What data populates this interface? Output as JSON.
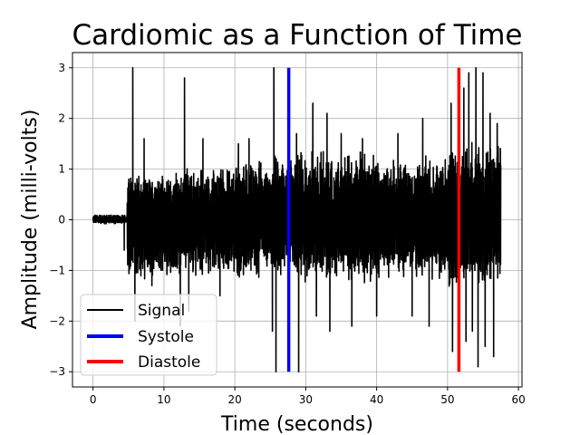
{
  "chart_data": {
    "type": "line",
    "title": "Cardiomic as a Function of Time",
    "xlabel": "Time (seconds)",
    "ylabel": "Amplitude (milli-volts)",
    "xlim": [
      -2.9,
      60.5
    ],
    "ylim": [
      -3.3,
      3.3
    ],
    "xticks": [
      0,
      10,
      20,
      30,
      40,
      50,
      60
    ],
    "yticks": [
      -3,
      -2,
      -1,
      0,
      1,
      2,
      3
    ],
    "grid": true,
    "legend_position": "lower-left",
    "colors": {
      "signal": "#000000",
      "systole": "#0000ff",
      "diastole": "#ff0000"
    },
    "series": [
      {
        "name": "Signal",
        "style": "line",
        "x_range": [
          0,
          57.5
        ],
        "envelope_segments": [
          {
            "x": [
              0,
              4.8
            ],
            "lo": -0.08,
            "hi": 0.1
          },
          {
            "x": [
              4.8,
              12
            ],
            "lo": -1.2,
            "hi": 1.0
          },
          {
            "x": [
              12,
              20
            ],
            "lo": -1.1,
            "hi": 1.1
          },
          {
            "x": [
              20,
              27.5
            ],
            "lo": -1.2,
            "hi": 1.3
          },
          {
            "x": [
              27.5,
              40
            ],
            "lo": -1.3,
            "hi": 1.4
          },
          {
            "x": [
              40,
              50
            ],
            "lo": -1.2,
            "hi": 1.3
          },
          {
            "x": [
              50,
              57.5
            ],
            "lo": -1.4,
            "hi": 1.6
          }
        ],
        "spikes": [
          {
            "x": 4.4,
            "y": -0.6
          },
          {
            "x": 5.6,
            "y": 3.0
          },
          {
            "x": 5.9,
            "y": -2.0
          },
          {
            "x": 7.2,
            "y": 1.6
          },
          {
            "x": 8.3,
            "y": -1.3
          },
          {
            "x": 12.3,
            "y": -2.1
          },
          {
            "x": 12.9,
            "y": 2.8
          },
          {
            "x": 13.5,
            "y": -1.8
          },
          {
            "x": 15.5,
            "y": 1.6
          },
          {
            "x": 17.9,
            "y": -1.5
          },
          {
            "x": 20.5,
            "y": 1.5
          },
          {
            "x": 22.0,
            "y": 1.6
          },
          {
            "x": 25.3,
            "y": -2.2
          },
          {
            "x": 25.5,
            "y": 3.0
          },
          {
            "x": 25.8,
            "y": -3.0
          },
          {
            "x": 28.7,
            "y": 1.7
          },
          {
            "x": 29.0,
            "y": -3.0
          },
          {
            "x": 31.0,
            "y": 2.3
          },
          {
            "x": 31.5,
            "y": -1.9
          },
          {
            "x": 33.0,
            "y": 2.1
          },
          {
            "x": 33.4,
            "y": -2.2
          },
          {
            "x": 35.0,
            "y": 1.7
          },
          {
            "x": 36.5,
            "y": -2.1
          },
          {
            "x": 38.0,
            "y": 1.6
          },
          {
            "x": 40.0,
            "y": -1.9
          },
          {
            "x": 43.0,
            "y": 1.7
          },
          {
            "x": 45.0,
            "y": -1.9
          },
          {
            "x": 46.5,
            "y": 2.0
          },
          {
            "x": 47.4,
            "y": -2.1
          },
          {
            "x": 50.5,
            "y": 2.3
          },
          {
            "x": 50.7,
            "y": -2.6
          },
          {
            "x": 52.3,
            "y": 2.6
          },
          {
            "x": 52.6,
            "y": -2.4
          },
          {
            "x": 53.0,
            "y": 2.9
          },
          {
            "x": 53.5,
            "y": -2.2
          },
          {
            "x": 54.0,
            "y": 3.0
          },
          {
            "x": 54.3,
            "y": -2.9
          },
          {
            "x": 55.0,
            "y": 2.9
          },
          {
            "x": 55.3,
            "y": -2.5
          },
          {
            "x": 56.0,
            "y": 2.1
          },
          {
            "x": 56.5,
            "y": -2.7
          },
          {
            "x": 57.0,
            "y": 1.9
          }
        ]
      },
      {
        "name": "Systole",
        "style": "vline",
        "x": 27.6,
        "y_range": [
          -3.0,
          3.0
        ]
      },
      {
        "name": "Diastole",
        "style": "vline",
        "x": 51.6,
        "y_range": [
          -3.0,
          3.0
        ]
      }
    ]
  }
}
